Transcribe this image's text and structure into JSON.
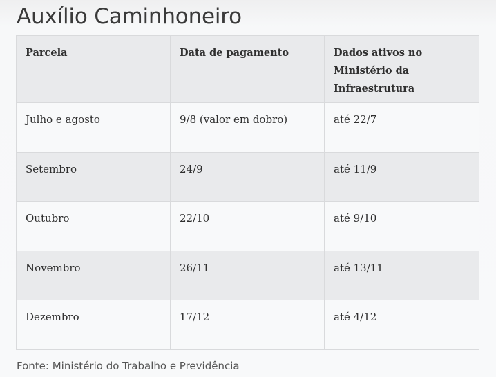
{
  "page": {
    "title": "Auxílio Caminhoneiro",
    "source": "Fonte: Ministério do Trabalho e Previdência"
  },
  "table": {
    "headers": [
      "Parcela",
      "Data de pagamento",
      "Dados ativos no Ministério da Infraestrutura"
    ],
    "rows": [
      [
        "Julho e agosto",
        "9/8 (valor em dobro)",
        "até 22/7"
      ],
      [
        "Setembro",
        "24/9",
        "até 11/9"
      ],
      [
        "Outubro",
        "22/10",
        "até 9/10"
      ],
      [
        "Novembro",
        "26/11",
        "até 13/11"
      ],
      [
        "Dezembro",
        "17/12",
        "até 4/12"
      ]
    ]
  },
  "colors": {
    "background": "#f8f9fa",
    "header_row": "#e9eaec",
    "striped_row": "#e9eaec",
    "border": "#d9dadc",
    "text": "#2f2f2f"
  }
}
